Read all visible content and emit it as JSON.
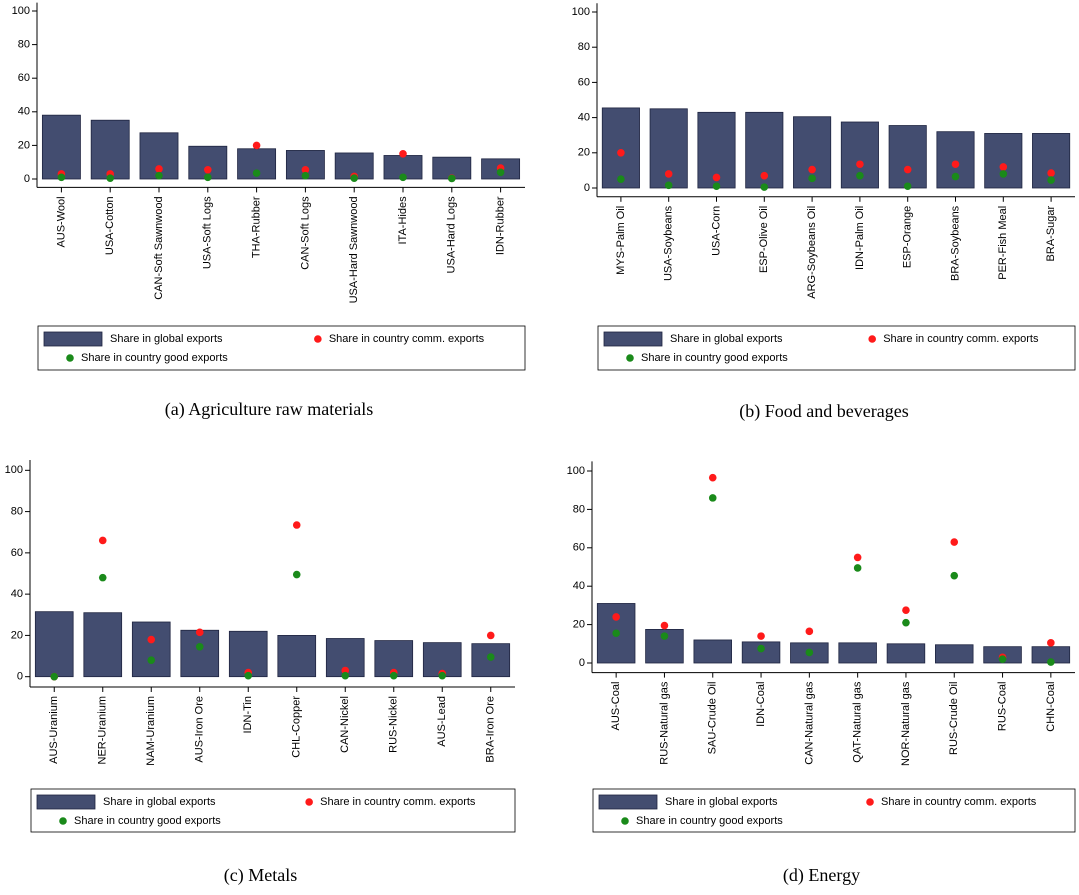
{
  "chart_data": [
    {
      "type": "bar",
      "caption": "(a) Agriculture raw materials",
      "categories": [
        "AUS-Wool",
        "USA-Cotton",
        "CAN-Soft Sawnwood",
        "USA-Soft Logs",
        "THA-Rubber",
        "CAN-Soft Logs",
        "USA-Hard Sawnwood",
        "ITA-Hides",
        "USA-Hard Logs",
        "IDN-Rubber"
      ],
      "series": [
        {
          "name": "Share in global exports",
          "type": "bar",
          "color": "#434d70",
          "values": [
            38,
            35,
            27.5,
            19.5,
            18,
            17,
            15.5,
            14,
            13,
            12
          ]
        },
        {
          "name": "Share in country comm. exports",
          "type": "scatter",
          "color": "#ff1a1a",
          "values": [
            3,
            3,
            6,
            5.5,
            20,
            5.5,
            1.5,
            15,
            0.5,
            6.5
          ]
        },
        {
          "name": "Share in country good exports",
          "type": "scatter",
          "color": "#1a8a1a",
          "values": [
            1,
            0.5,
            2,
            1,
            3.5,
            2,
            0.5,
            1,
            0.3,
            4
          ]
        }
      ],
      "ylim": [
        -5,
        105
      ],
      "yticks": [
        0,
        20,
        40,
        60,
        80,
        100
      ],
      "legend": "bottom"
    },
    {
      "type": "bar",
      "caption": "(b) Food and beverages",
      "categories": [
        "MYS-Palm Oil",
        "USA-Soybeans",
        "USA-Corn",
        "ESP-Olive Oil",
        "ARG-Soybeans Oil",
        "IDN-Palm Oil",
        "ESP-Orange",
        "BRA-Soybeans",
        "PER-Fish Meal",
        "BRA-Sugar"
      ],
      "series": [
        {
          "name": "Share in global exports",
          "type": "bar",
          "color": "#434d70",
          "values": [
            45.5,
            45,
            43,
            43,
            40.5,
            37.5,
            35.5,
            32,
            31,
            31
          ]
        },
        {
          "name": "Share in country comm. exports",
          "type": "scatter",
          "color": "#ff1a1a",
          "values": [
            20,
            8,
            6,
            7,
            10.5,
            13.5,
            10.5,
            13.5,
            12,
            8.5
          ]
        },
        {
          "name": "Share in country good exports",
          "type": "scatter",
          "color": "#1a8a1a",
          "values": [
            5,
            1.5,
            1,
            0.5,
            5.5,
            7,
            1,
            6.5,
            8,
            4.5
          ]
        }
      ],
      "ylim": [
        -5,
        105
      ],
      "yticks": [
        0,
        20,
        40,
        60,
        80,
        100
      ],
      "legend": "bottom"
    },
    {
      "type": "bar",
      "caption": "(c) Metals",
      "categories": [
        "AUS-Uranium",
        "NER-Uranium",
        "NAM-Uranium",
        "AUS-Iron Ore",
        "IDN-Tin",
        "CHL-Copper",
        "CAN-Nickel",
        "RUS-Nickel",
        "AUS-Lead",
        "BRA-Iron Ore"
      ],
      "series": [
        {
          "name": "Share in global exports",
          "type": "bar",
          "color": "#434d70",
          "values": [
            31.5,
            31,
            26.5,
            22.5,
            22,
            20,
            18.5,
            17.5,
            16.5,
            16
          ]
        },
        {
          "name": "Share in country comm. exports",
          "type": "scatter",
          "color": "#ff1a1a",
          "values": [
            0,
            66,
            18,
            21.5,
            2,
            73.5,
            3,
            2,
            1.5,
            20
          ]
        },
        {
          "name": "Share in country good exports",
          "type": "scatter",
          "color": "#1a8a1a",
          "values": [
            0,
            48,
            8,
            14.5,
            0.5,
            49.5,
            0.5,
            0.5,
            0.5,
            9.5
          ]
        }
      ],
      "ylim": [
        -5,
        105
      ],
      "yticks": [
        0,
        20,
        40,
        60,
        80,
        100
      ],
      "legend": "bottom"
    },
    {
      "type": "bar",
      "caption": "(d) Energy",
      "categories": [
        "AUS-Coal",
        "RUS-Natural gas",
        "SAU-Crude Oil",
        "IDN-Coal",
        "CAN-Natural gas",
        "QAT-Natural gas",
        "NOR-Natural gas",
        "RUS-Crude Oil",
        "RUS-Coal",
        "CHN-Coal"
      ],
      "series": [
        {
          "name": "Share in global exports",
          "type": "bar",
          "color": "#434d70",
          "values": [
            31,
            17.5,
            12,
            11,
            10.5,
            10.5,
            10,
            9.5,
            8.5,
            8.5
          ]
        },
        {
          "name": "Share in country comm. exports",
          "type": "scatter",
          "color": "#ff1a1a",
          "values": [
            24,
            19.5,
            96.5,
            14,
            16.5,
            55,
            27.5,
            63,
            3,
            10.5
          ]
        },
        {
          "name": "Share in country good exports",
          "type": "scatter",
          "color": "#1a8a1a",
          "values": [
            15.5,
            14,
            86,
            7.5,
            5.5,
            49.5,
            21,
            45.5,
            2,
            0.5
          ]
        }
      ],
      "ylim": [
        -5,
        105
      ],
      "yticks": [
        0,
        20,
        40,
        60,
        80,
        100
      ],
      "legend": "bottom"
    }
  ]
}
